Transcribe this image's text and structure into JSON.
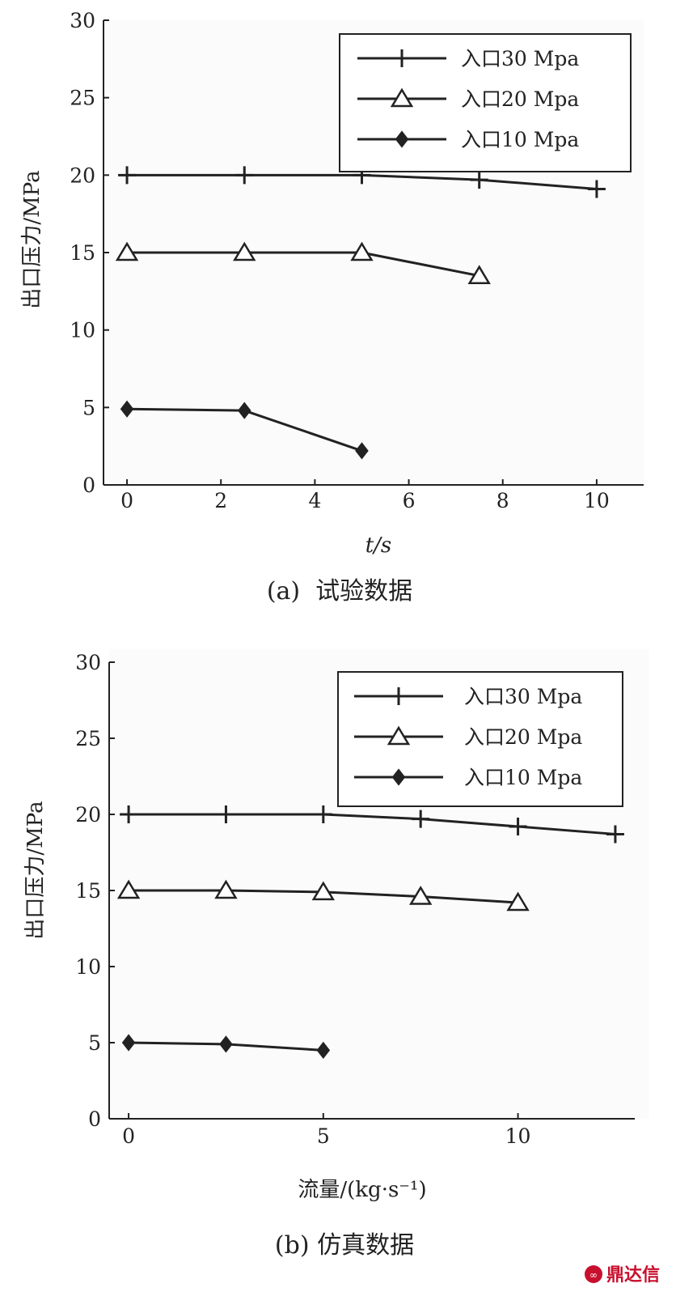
{
  "chart_data": [
    {
      "type": "line",
      "caption": "(a)  试验数据",
      "xlabel": "t/s",
      "ylabel": "出口压力/MPa",
      "xlim": [
        -0.5,
        11
      ],
      "ylim": [
        0,
        30
      ],
      "xticks": [
        0,
        2,
        4,
        6,
        8,
        10
      ],
      "yticks": [
        0,
        5,
        10,
        15,
        20,
        25,
        30
      ],
      "legend_position": "top-right",
      "series": [
        {
          "name": "入口30 Mpa",
          "marker": "plus",
          "x": [
            0,
            2.5,
            5,
            7.5,
            10
          ],
          "y": [
            20,
            20,
            20,
            19.7,
            19.1
          ]
        },
        {
          "name": "入口20 Mpa",
          "marker": "triangle",
          "x": [
            0,
            2.5,
            5,
            7.5
          ],
          "y": [
            15,
            15,
            15,
            13.5
          ]
        },
        {
          "name": "入口10 Mpa",
          "marker": "diamond",
          "x": [
            0,
            2.5,
            5
          ],
          "y": [
            4.9,
            4.8,
            2.2
          ]
        }
      ]
    },
    {
      "type": "line",
      "caption": "(b) 仿真数据",
      "xlabel": "流量/(kg·s⁻¹)",
      "ylabel": "出口压力/MPa",
      "xlim": [
        -0.5,
        13
      ],
      "ylim": [
        0,
        30
      ],
      "xticks": [
        0,
        5,
        10
      ],
      "yticks": [
        0,
        5,
        10,
        15,
        20,
        25,
        30
      ],
      "legend_position": "top-right",
      "series": [
        {
          "name": "入口30 Mpa",
          "marker": "plus",
          "x": [
            0,
            2.5,
            5,
            7.5,
            10,
            12.5
          ],
          "y": [
            20,
            20,
            20,
            19.7,
            19.2,
            18.7
          ]
        },
        {
          "name": "入口20 Mpa",
          "marker": "triangle",
          "x": [
            0,
            2.5,
            5,
            7.5,
            10
          ],
          "y": [
            15,
            15,
            14.9,
            14.6,
            14.2
          ]
        },
        {
          "name": "入口10 Mpa",
          "marker": "diamond",
          "x": [
            0,
            2.5,
            5
          ],
          "y": [
            5,
            4.9,
            4.5
          ]
        }
      ]
    }
  ],
  "watermark": {
    "text": "鼎达信",
    "color": "#c8102e"
  }
}
